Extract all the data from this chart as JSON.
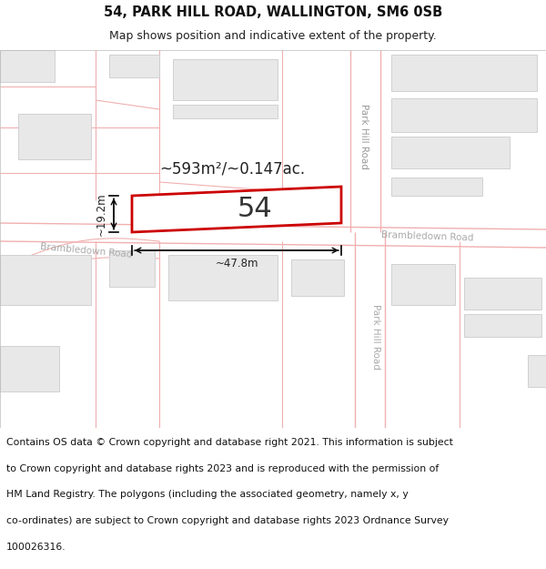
{
  "title_line1": "54, PARK HILL ROAD, WALLINGTON, SM6 0SB",
  "title_line2": "Map shows position and indicative extent of the property.",
  "bg_color": "#ffffff",
  "map_bg": "#f5f5f5",
  "road_line_color": "#f0b0b0",
  "block_fill": "#e8e8e8",
  "block_edge": "#d0d0d0",
  "highlight_edge": "#cc0000",
  "highlight_fill": "#ffffff",
  "dim_color": "#222222",
  "text_color": "#333333",
  "road_text_color": "#aaaaaa",
  "footer_lines": [
    "Contains OS data © Crown copyright and database right 2021. This information is subject",
    "to Crown copyright and database rights 2023 and is reproduced with the permission of",
    "HM Land Registry. The polygons (including the associated geometry, namely x, y",
    "co-ordinates) are subject to Crown copyright and database rights 2023 Ordnance Survey",
    "100026316."
  ],
  "area_label": "~593m²/~0.147ac.",
  "number_label": "54",
  "dim_width": "~47.8m",
  "dim_height": "~19.2m",
  "road_label_park_upper": "Park Hill Road",
  "road_label_bram_right": "Brambledown Road",
  "road_label_bram_left": "Brambledown Road",
  "road_label_park_lower": "Park Hill Road"
}
